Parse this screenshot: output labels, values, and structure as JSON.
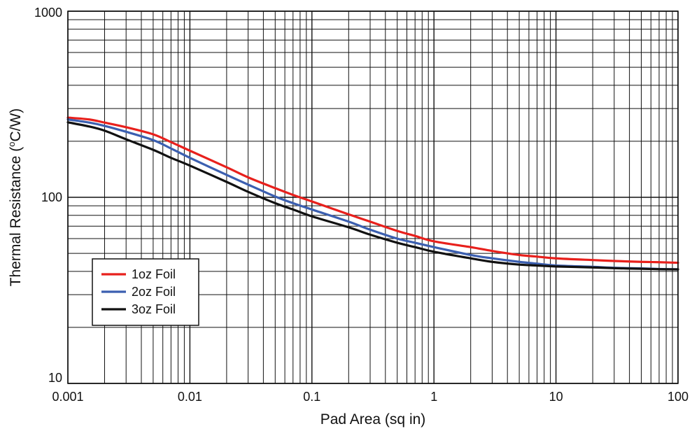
{
  "chart_data": {
    "type": "line",
    "xscale": "log",
    "yscale": "log",
    "xlim": [
      0.001,
      100
    ],
    "ylim": [
      10,
      1000
    ],
    "xlabel": "Pad Area (sq in)",
    "ylabel_prefix": "Thermal Resistance (",
    "ylabel_sup": "o",
    "ylabel_suffix": "C/W)",
    "x_tick_labels": [
      "0.001",
      "0.01",
      "0.1",
      "1",
      "10",
      "100"
    ],
    "y_tick_labels": [
      "10",
      "100",
      "1000"
    ],
    "grid": true,
    "legend_position": "lower-left",
    "series": [
      {
        "name": "1oz Foil",
        "color": "#e8201c",
        "points": [
          [
            0.001,
            268
          ],
          [
            0.0015,
            262
          ],
          [
            0.002,
            252
          ],
          [
            0.003,
            238
          ],
          [
            0.005,
            218
          ],
          [
            0.007,
            198
          ],
          [
            0.01,
            178
          ],
          [
            0.02,
            145
          ],
          [
            0.03,
            128
          ],
          [
            0.05,
            112
          ],
          [
            0.07,
            103
          ],
          [
            0.1,
            95
          ],
          [
            0.2,
            81
          ],
          [
            0.3,
            74
          ],
          [
            0.5,
            66
          ],
          [
            0.7,
            62
          ],
          [
            1,
            58
          ],
          [
            2,
            54
          ],
          [
            3,
            51.5
          ],
          [
            5,
            49
          ],
          [
            7,
            48
          ],
          [
            10,
            47
          ],
          [
            20,
            46
          ],
          [
            30,
            45.5
          ],
          [
            50,
            45
          ],
          [
            70,
            44.8
          ],
          [
            100,
            44.5
          ]
        ]
      },
      {
        "name": "2oz Foil",
        "color": "#3b5fb0",
        "points": [
          [
            0.001,
            262
          ],
          [
            0.0015,
            252
          ],
          [
            0.002,
            242
          ],
          [
            0.003,
            225
          ],
          [
            0.005,
            203
          ],
          [
            0.007,
            183
          ],
          [
            0.01,
            163
          ],
          [
            0.02,
            132
          ],
          [
            0.03,
            117
          ],
          [
            0.05,
            101
          ],
          [
            0.07,
            93
          ],
          [
            0.1,
            86
          ],
          [
            0.2,
            74
          ],
          [
            0.3,
            67
          ],
          [
            0.5,
            60
          ],
          [
            0.7,
            57
          ],
          [
            1,
            54
          ],
          [
            2,
            49
          ],
          [
            3,
            47
          ],
          [
            5,
            45
          ],
          [
            7,
            44
          ],
          [
            10,
            43
          ],
          [
            20,
            42.3
          ],
          [
            30,
            41.8
          ],
          [
            50,
            41.5
          ],
          [
            70,
            41.2
          ],
          [
            100,
            41
          ]
        ]
      },
      {
        "name": "3oz Foil",
        "color": "#111111",
        "points": [
          [
            0.001,
            253
          ],
          [
            0.0015,
            240
          ],
          [
            0.002,
            228
          ],
          [
            0.003,
            205
          ],
          [
            0.005,
            180
          ],
          [
            0.007,
            163
          ],
          [
            0.01,
            148
          ],
          [
            0.02,
            121
          ],
          [
            0.03,
            107
          ],
          [
            0.05,
            93
          ],
          [
            0.07,
            86
          ],
          [
            0.1,
            79
          ],
          [
            0.2,
            69
          ],
          [
            0.3,
            63
          ],
          [
            0.5,
            57
          ],
          [
            0.7,
            54
          ],
          [
            1,
            51
          ],
          [
            2,
            47
          ],
          [
            3,
            45
          ],
          [
            5,
            43.5
          ],
          [
            7,
            43
          ],
          [
            10,
            42.5
          ],
          [
            20,
            42
          ],
          [
            30,
            41.6
          ],
          [
            50,
            41.3
          ],
          [
            70,
            41.1
          ],
          [
            100,
            41
          ]
        ]
      }
    ]
  }
}
